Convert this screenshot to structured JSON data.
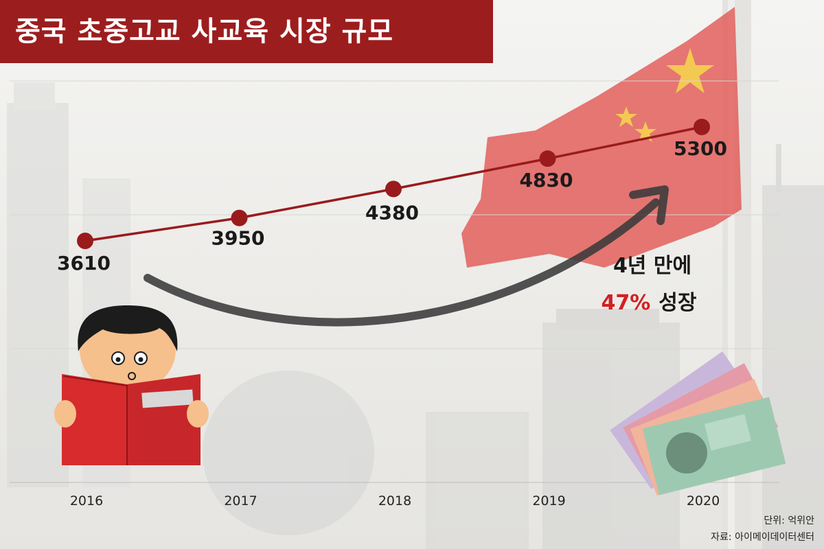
{
  "title": "중국 초중고교 사교육 시장 규모",
  "annotation": {
    "line1": "4년 만에",
    "growth_pct": "47%",
    "growth_word": "성장"
  },
  "unit_note": "단위: 억위안",
  "source_note": "자료: 아이메이데이터센터",
  "colors": {
    "title_bg": "#9c1d1e",
    "series": "#9a1b1c",
    "highlight": "#d32020",
    "flag": "#e0413e",
    "flag_star": "#f4d04a"
  },
  "chart_data": {
    "type": "line",
    "title": "중국 초중고교 사교육 시장 규모",
    "xlabel": "",
    "ylabel": "",
    "categories": [
      "2016",
      "2017",
      "2018",
      "2019",
      "2020"
    ],
    "series": [
      {
        "values": [
          3610,
          3950,
          4380,
          4830,
          5300
        ]
      }
    ],
    "value_labels": [
      "3610",
      "3950",
      "4380",
      "4830",
      "5300"
    ],
    "grid": true,
    "unit": "억위안"
  }
}
